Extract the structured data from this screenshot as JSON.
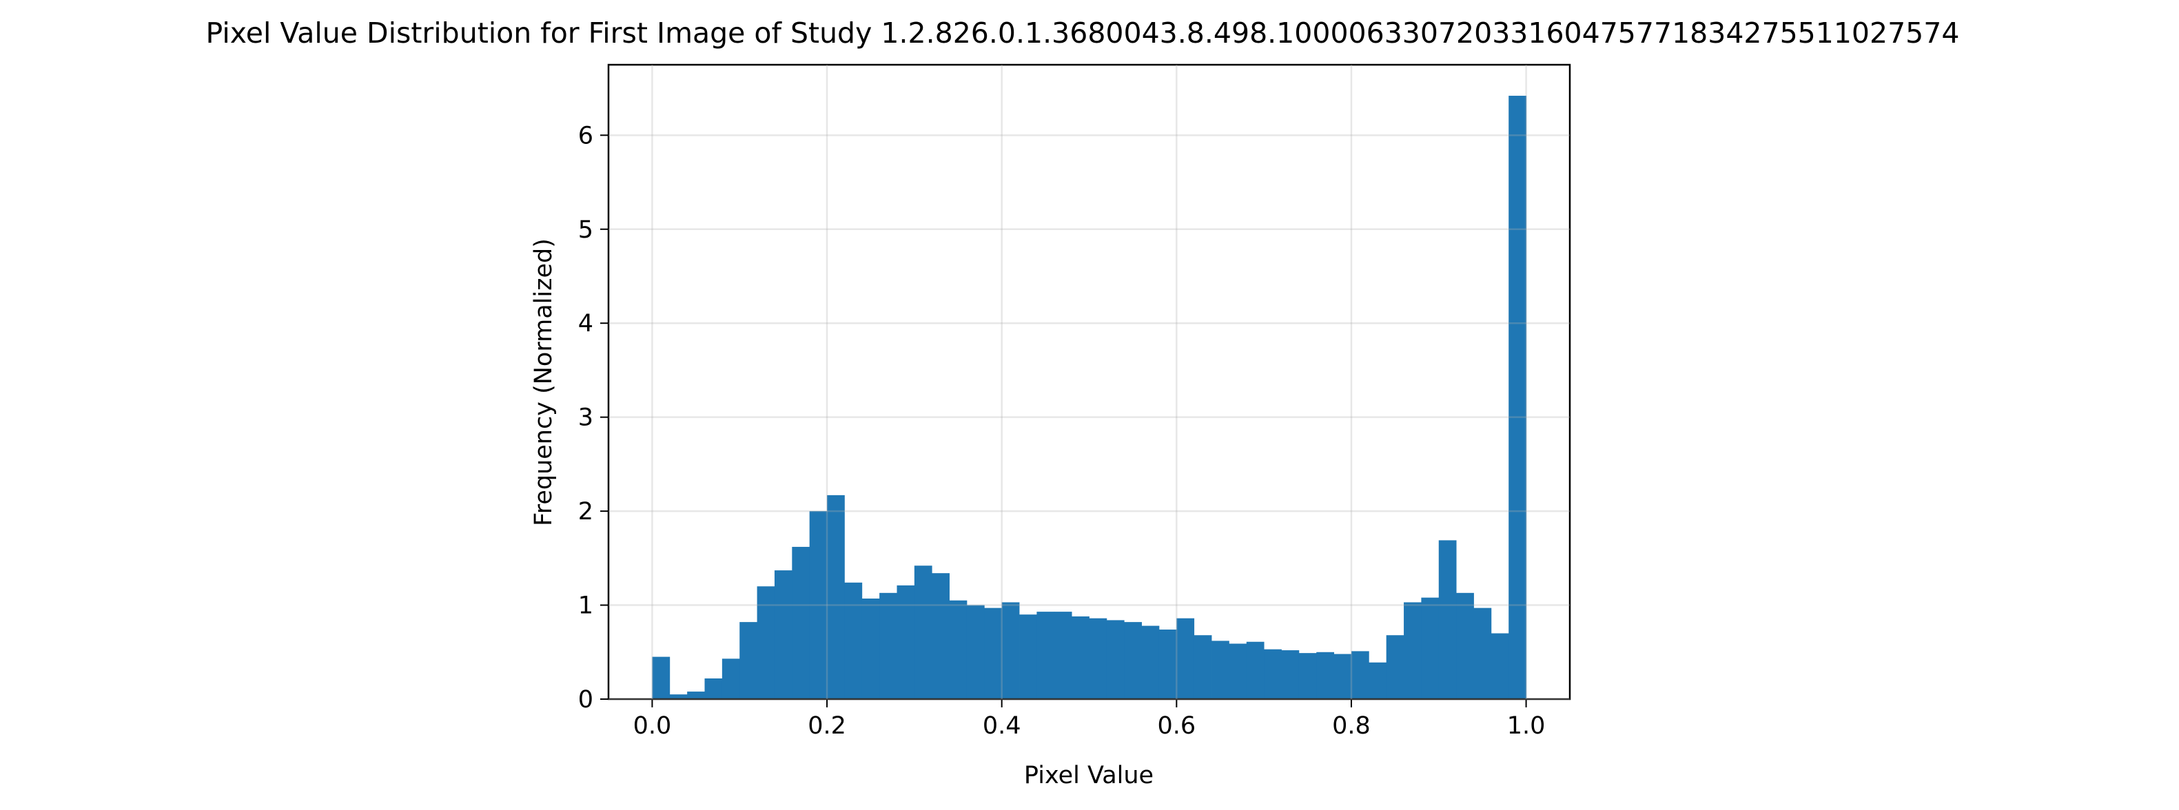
{
  "chart_data": {
    "type": "bar",
    "title": "Pixel Value Distribution for First Image of Study 1.2.826.0.1.3680043.8.498.10000633072033160475771834275511027574",
    "xlabel": "Pixel Value",
    "ylabel": "Frequency (Normalized)",
    "xlim": [
      -0.05,
      1.05
    ],
    "ylim": [
      0,
      6.75
    ],
    "x_ticks": [
      0.0,
      0.2,
      0.4,
      0.6,
      0.8,
      1.0
    ],
    "x_tick_labels": [
      "0.0",
      "0.2",
      "0.4",
      "0.6",
      "0.8",
      "1.0"
    ],
    "y_ticks": [
      0,
      1,
      2,
      3,
      4,
      5,
      6
    ],
    "y_tick_labels": [
      "0",
      "1",
      "2",
      "3",
      "4",
      "5",
      "6"
    ],
    "grid": true,
    "bar_color": "#1f77b4",
    "bin_edges": [
      0.0,
      0.02,
      0.04,
      0.06,
      0.08,
      0.1,
      0.12,
      0.14,
      0.16,
      0.18,
      0.2,
      0.22,
      0.24,
      0.26,
      0.28,
      0.3,
      0.32,
      0.34,
      0.36,
      0.38,
      0.4,
      0.42,
      0.44,
      0.46,
      0.48,
      0.5,
      0.52,
      0.54,
      0.56,
      0.58,
      0.6,
      0.62,
      0.64,
      0.66,
      0.68,
      0.7,
      0.72,
      0.74,
      0.76,
      0.78,
      0.8,
      0.82,
      0.84,
      0.86,
      0.88,
      0.9,
      0.92,
      0.94,
      0.96,
      0.98,
      1.0
    ],
    "values": [
      0.45,
      0.05,
      0.08,
      0.22,
      0.43,
      0.82,
      1.2,
      1.37,
      1.62,
      2.0,
      2.17,
      1.24,
      1.07,
      1.13,
      1.21,
      1.42,
      1.34,
      1.05,
      1.0,
      0.97,
      1.03,
      0.9,
      0.93,
      0.93,
      0.88,
      0.86,
      0.84,
      0.82,
      0.78,
      0.74,
      0.86,
      0.68,
      0.62,
      0.59,
      0.61,
      0.53,
      0.52,
      0.49,
      0.5,
      0.48,
      0.51,
      0.39,
      0.68,
      1.03,
      1.08,
      1.69,
      1.13,
      0.97,
      0.7,
      6.42
    ]
  }
}
